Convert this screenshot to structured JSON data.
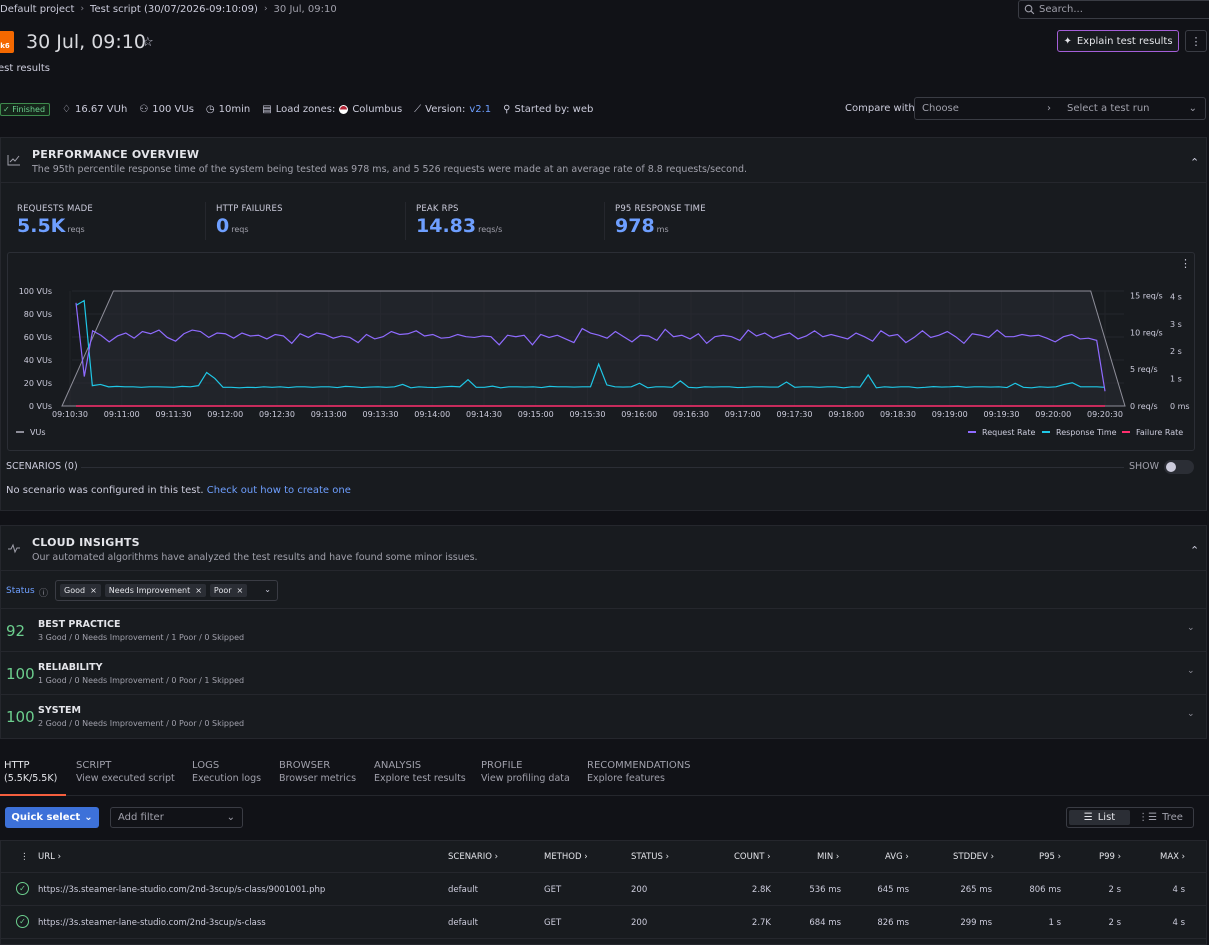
{
  "breadcrumb": {
    "items": [
      "Default project",
      "Test script (30/07/2026-09:10:09)",
      "30 Jul, 09:10"
    ]
  },
  "search": {
    "placeholder": "Search..."
  },
  "header": {
    "logo_text": "k6",
    "title": "30 Jul, 09:10",
    "subtitle": "est results",
    "explain_label": "Explain test results"
  },
  "meta": {
    "status": "Finished",
    "vuh": "16.67 VUh",
    "vus": "100 VUs",
    "duration": "10min",
    "load_zones_label": "Load zones:",
    "load_zone": "Columbus",
    "version_label": "Version:",
    "version": "v2.1",
    "started_by": "Started by: web"
  },
  "compare": {
    "label": "Compare with",
    "choose": "Choose",
    "run": "Select a test run"
  },
  "performance": {
    "title": "PERFORMANCE OVERVIEW",
    "description": "The 95th percentile response time of the system being tested was 978 ms, and 5 526 requests were made at an average rate of 8.8 requests/second.",
    "stats": [
      {
        "label": "REQUESTS MADE",
        "value": "5.5K",
        "unit": "reqs"
      },
      {
        "label": "HTTP FAILURES",
        "value": "0",
        "unit": "reqs"
      },
      {
        "label": "PEAK RPS",
        "value": "14.83",
        "unit": "reqs/s"
      },
      {
        "label": "P95 RESPONSE TIME",
        "value": "978",
        "unit": "ms"
      }
    ]
  },
  "chart_data": {
    "type": "line",
    "x_ticks": [
      "09:10:30",
      "09:11:00",
      "09:11:30",
      "09:12:00",
      "09:12:30",
      "09:13:00",
      "09:13:30",
      "09:14:00",
      "09:14:30",
      "09:15:00",
      "09:15:30",
      "09:16:00",
      "09:16:30",
      "09:17:00",
      "09:17:30",
      "09:18:00",
      "09:18:30",
      "09:19:00",
      "09:19:30",
      "09:20:00",
      "09:20:30"
    ],
    "y_left_ticks": [
      "100 VUs",
      "80 VUs",
      "60 VUs",
      "40 VUs",
      "20 VUs",
      "0 VUs"
    ],
    "y_right1_ticks": [
      "15 req/s",
      "10 req/s",
      "5 req/s",
      "0 req/s"
    ],
    "y_right2_ticks": [
      "4 s",
      "3 s",
      "2 s",
      "1 s",
      "0 ms"
    ],
    "legend_left": [
      "VUs"
    ],
    "legend_right": [
      "Request Rate",
      "Response Time",
      "Failure Rate"
    ],
    "colors": {
      "vus": "#8e8e99",
      "request_rate": "#8f6bff",
      "response_time": "#1fc7e6",
      "failure_rate": "#ff2f6e"
    },
    "vus": {
      "x_seconds": [
        0,
        30,
        570,
        600,
        620
      ],
      "values": [
        0,
        100,
        100,
        100,
        0
      ]
    },
    "request_rate": [
      14,
      4,
      10.2,
      9.6,
      8.7,
      9.5,
      9.9,
      9.2,
      10.1,
      9.8,
      10.3,
      9.3,
      8.8,
      9.8,
      10.3,
      10.1,
      9.3,
      9.9,
      9.8,
      9.2,
      9.9,
      9.5,
      9.6,
      9.1,
      9.7,
      9.5,
      8.5,
      9.8,
      9.3,
      9.9,
      9.7,
      9.2,
      9.5,
      9.3,
      8.6,
      9.7,
      9.1,
      9.4,
      10.1,
      9.7,
      9.8,
      10.2,
      9.5,
      9.7,
      9.2,
      9.3,
      9.7,
      9.4,
      9.3,
      9.5,
      9.4,
      8.3,
      9.6,
      9.4,
      9.6,
      8.3,
      9.7,
      9.3,
      9.6,
      9.1,
      8.6,
      10.5,
      9.9,
      9.6,
      9.2,
      10.1,
      9.4,
      8.7,
      9.6,
      9.5,
      8.9,
      10.4,
      9.4,
      9.6,
      9.1,
      9.8,
      8.5,
      9.4,
      9.6,
      9.4,
      8.9,
      10.3,
      9.5,
      9.9,
      9.2,
      9.6,
      9.9,
      9.1,
      9.5,
      10.2,
      9.4,
      9.7,
      9.4,
      9.1,
      9.9,
      9.4,
      8.8,
      10.2,
      9.5,
      9.7,
      8.6,
      9.3,
      10.2,
      9.3,
      9.6,
      10.1,
      9.4,
      8.5,
      9.8,
      9.6,
      9.3,
      10.3,
      9.4,
      9.4,
      9.7,
      9.5,
      9.6,
      9.2,
      8.7,
      9.4,
      9.7,
      9.1,
      9.2,
      8.9,
      2
    ],
    "response_time_s": [
      4.2,
      4.4,
      0.85,
      0.9,
      0.8,
      0.82,
      0.8,
      0.8,
      0.78,
      0.8,
      0.8,
      0.79,
      0.78,
      0.82,
      0.8,
      0.85,
      1.4,
      1.15,
      0.78,
      0.78,
      0.76,
      0.78,
      0.77,
      0.8,
      0.78,
      0.8,
      0.77,
      0.8,
      0.8,
      0.78,
      0.8,
      0.8,
      0.77,
      0.82,
      0.8,
      0.77,
      0.79,
      0.8,
      0.78,
      0.8,
      0.9,
      0.76,
      0.8,
      0.78,
      0.77,
      0.8,
      0.82,
      0.8,
      1.1,
      0.78,
      0.78,
      0.83,
      0.76,
      0.8,
      0.8,
      0.79,
      0.8,
      0.77,
      0.82,
      0.8,
      0.8,
      0.79,
      0.8,
      0.8,
      1.75,
      0.88,
      0.8,
      0.79,
      0.8,
      0.95,
      0.76,
      0.8,
      0.8,
      0.78,
      1.05,
      0.78,
      0.76,
      0.8,
      0.79,
      0.8,
      0.8,
      0.77,
      0.78,
      0.8,
      0.8,
      0.79,
      0.79,
      1.0,
      0.78,
      0.8,
      0.8,
      0.78,
      0.8,
      0.8,
      0.76,
      0.8,
      0.79,
      1.3,
      0.76,
      0.8,
      0.78,
      0.8,
      0.8,
      0.76,
      0.78,
      0.81,
      0.79,
      0.8,
      0.82,
      0.78,
      0.8,
      0.8,
      0.79,
      0.8,
      0.77,
      0.95,
      0.78,
      0.76,
      0.8,
      0.78,
      0.8,
      0.9,
      0.97,
      0.8,
      0.8,
      0.8,
      0.78
    ],
    "failure_rate": 0
  },
  "scenarios": {
    "title": "SCENARIOS (0)",
    "show_label": "SHOW",
    "empty_text": "No scenario was configured in this test.",
    "link": "Check out how to create one"
  },
  "insights": {
    "title": "CLOUD INSIGHTS",
    "description": "Our automated algorithms have analyzed the test results and have found some minor issues.",
    "status_label": "Status",
    "chips": [
      "Good",
      "Needs Improvement",
      "Poor"
    ],
    "rows": [
      {
        "score": "92",
        "name": "BEST PRACTICE",
        "detail": "3 Good / 0 Needs Improvement / 1 Poor / 0 Skipped"
      },
      {
        "score": "100",
        "name": "RELIABILITY",
        "detail": "1 Good / 0 Needs Improvement / 0 Poor / 1 Skipped"
      },
      {
        "score": "100",
        "name": "SYSTEM",
        "detail": "2 Good / 0 Needs Improvement / 0 Poor / 0 Skipped"
      }
    ]
  },
  "tabs": [
    {
      "name": "HTTP",
      "desc": "(5.5K/5.5K)"
    },
    {
      "name": "SCRIPT",
      "desc": "View executed script"
    },
    {
      "name": "LOGS",
      "desc": "Execution logs"
    },
    {
      "name": "BROWSER",
      "desc": "Browser metrics"
    },
    {
      "name": "ANALYSIS",
      "desc": "Explore test results"
    },
    {
      "name": "PROFILE",
      "desc": "View profiling data"
    },
    {
      "name": "RECOMMENDATIONS",
      "desc": "Explore features"
    }
  ],
  "filters": {
    "quick_select": "Quick select",
    "add_filter": "Add filter",
    "view_list": "List",
    "view_tree": "Tree"
  },
  "table": {
    "headers": [
      "URL",
      "SCENARIO",
      "METHOD",
      "STATUS",
      "COUNT",
      "MIN",
      "AVG",
      "STDDEV",
      "P95",
      "P99",
      "MAX"
    ],
    "rows": [
      [
        "https://3s.steamer-lane-studio.com/2nd-3scup/s-class/9001001.php",
        "default",
        "GET",
        "200",
        "2.8K",
        "536 ms",
        "645 ms",
        "265 ms",
        "806 ms",
        "2 s",
        "4 s"
      ],
      [
        "https://3s.steamer-lane-studio.com/2nd-3scup/s-class",
        "default",
        "GET",
        "200",
        "2.7K",
        "684 ms",
        "826 ms",
        "299 ms",
        "1 s",
        "2 s",
        "4 s"
      ]
    ]
  }
}
